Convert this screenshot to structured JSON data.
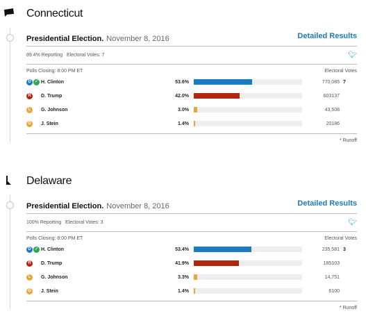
{
  "colors": {
    "dem": "#1a7bc1",
    "rep": "#b0260f",
    "lib": "#e5a73a",
    "grn": "#e5a73a",
    "check": "#2aa84f",
    "link": "#1a7bc1"
  },
  "states": [
    {
      "name": "Connecticut",
      "election_title": "Presidential Election.",
      "election_date": "November 8, 2016",
      "detailed_results": "Detailed Results",
      "reporting": "89.4% Reporting",
      "electoral_votes_summary": "Electoral Votes: 7",
      "polls_closing": "Polls Closing: 8:00 PM ET",
      "ev_header": "Electoral Votes",
      "runoff": "* Runoff",
      "candidates": [
        {
          "badge": "D",
          "winner": true,
          "name": "H. Clinton",
          "pct": "53.6%",
          "share": 0.536,
          "votes": "770,085",
          "ev": "7"
        },
        {
          "badge": "R",
          "winner": false,
          "name": "D. Trump",
          "pct": "42.0%",
          "share": 0.42,
          "votes": "603137",
          "ev": ""
        },
        {
          "badge": "L",
          "winner": false,
          "name": "G. Johnson",
          "pct": "3.0%",
          "share": 0.03,
          "votes": "43,508",
          "ev": ""
        },
        {
          "badge": "G",
          "winner": false,
          "name": "J. Stein",
          "pct": "1.4%",
          "share": 0.014,
          "votes": "20186",
          "ev": ""
        }
      ]
    },
    {
      "name": "Delaware",
      "election_title": "Presidential Election.",
      "election_date": "November 8, 2016",
      "detailed_results": "Detailed Results",
      "reporting": "100% Reporting",
      "electoral_votes_summary": "Electoral Votes: 3",
      "polls_closing": "Polls Closing: 8:00 PM ET",
      "ev_header": "Electoral Votes",
      "runoff": "* Runoff",
      "candidates": [
        {
          "badge": "D",
          "winner": true,
          "name": "H. Clinton",
          "pct": "53.4%",
          "share": 0.534,
          "votes": "235,581",
          "ev": "3"
        },
        {
          "badge": "R",
          "winner": false,
          "name": "D. Trump",
          "pct": "41.9%",
          "share": 0.419,
          "votes": "185103",
          "ev": ""
        },
        {
          "badge": "L",
          "winner": false,
          "name": "G. Johnson",
          "pct": "3.3%",
          "share": 0.033,
          "votes": "14,751",
          "ev": ""
        },
        {
          "badge": "G",
          "winner": false,
          "name": "J. Stein",
          "pct": "1.4%",
          "share": 0.014,
          "votes": "6100",
          "ev": ""
        }
      ]
    }
  ]
}
